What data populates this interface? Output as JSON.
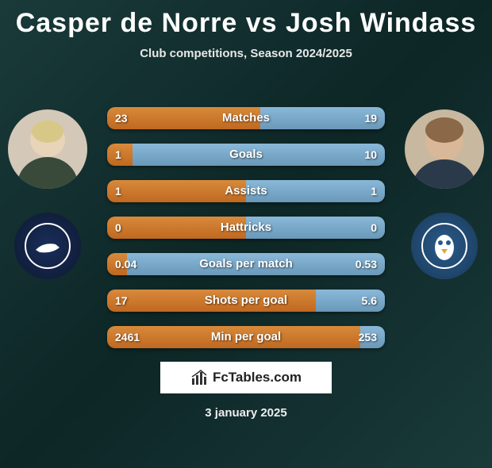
{
  "title": "Casper de Norre vs Josh Windass",
  "subtitle": "Club competitions, Season 2024/2025",
  "brand": "FcTables.com",
  "date": "3 january 2025",
  "colors": {
    "bar_left": "#d88a3a",
    "bar_right": "#8ab8d8",
    "background": "#1a3a3a",
    "crest_left": "#1a2e5a",
    "crest_right": "#2a5a8a"
  },
  "stats": [
    {
      "label": "Matches",
      "left_val": "23",
      "right_val": "19",
      "left_pct": 55,
      "right_pct": 45
    },
    {
      "label": "Goals",
      "left_val": "1",
      "right_val": "10",
      "left_pct": 9,
      "right_pct": 91
    },
    {
      "label": "Assists",
      "left_val": "1",
      "right_val": "1",
      "left_pct": 50,
      "right_pct": 50
    },
    {
      "label": "Hattricks",
      "left_val": "0",
      "right_val": "0",
      "left_pct": 50,
      "right_pct": 50
    },
    {
      "label": "Goals per match",
      "left_val": "0.04",
      "right_val": "0.53",
      "left_pct": 7,
      "right_pct": 93
    },
    {
      "label": "Shots per goal",
      "left_val": "17",
      "right_val": "5.6",
      "left_pct": 75,
      "right_pct": 25
    },
    {
      "label": "Min per goal",
      "left_val": "2461",
      "right_val": "253",
      "left_pct": 91,
      "right_pct": 9
    }
  ]
}
